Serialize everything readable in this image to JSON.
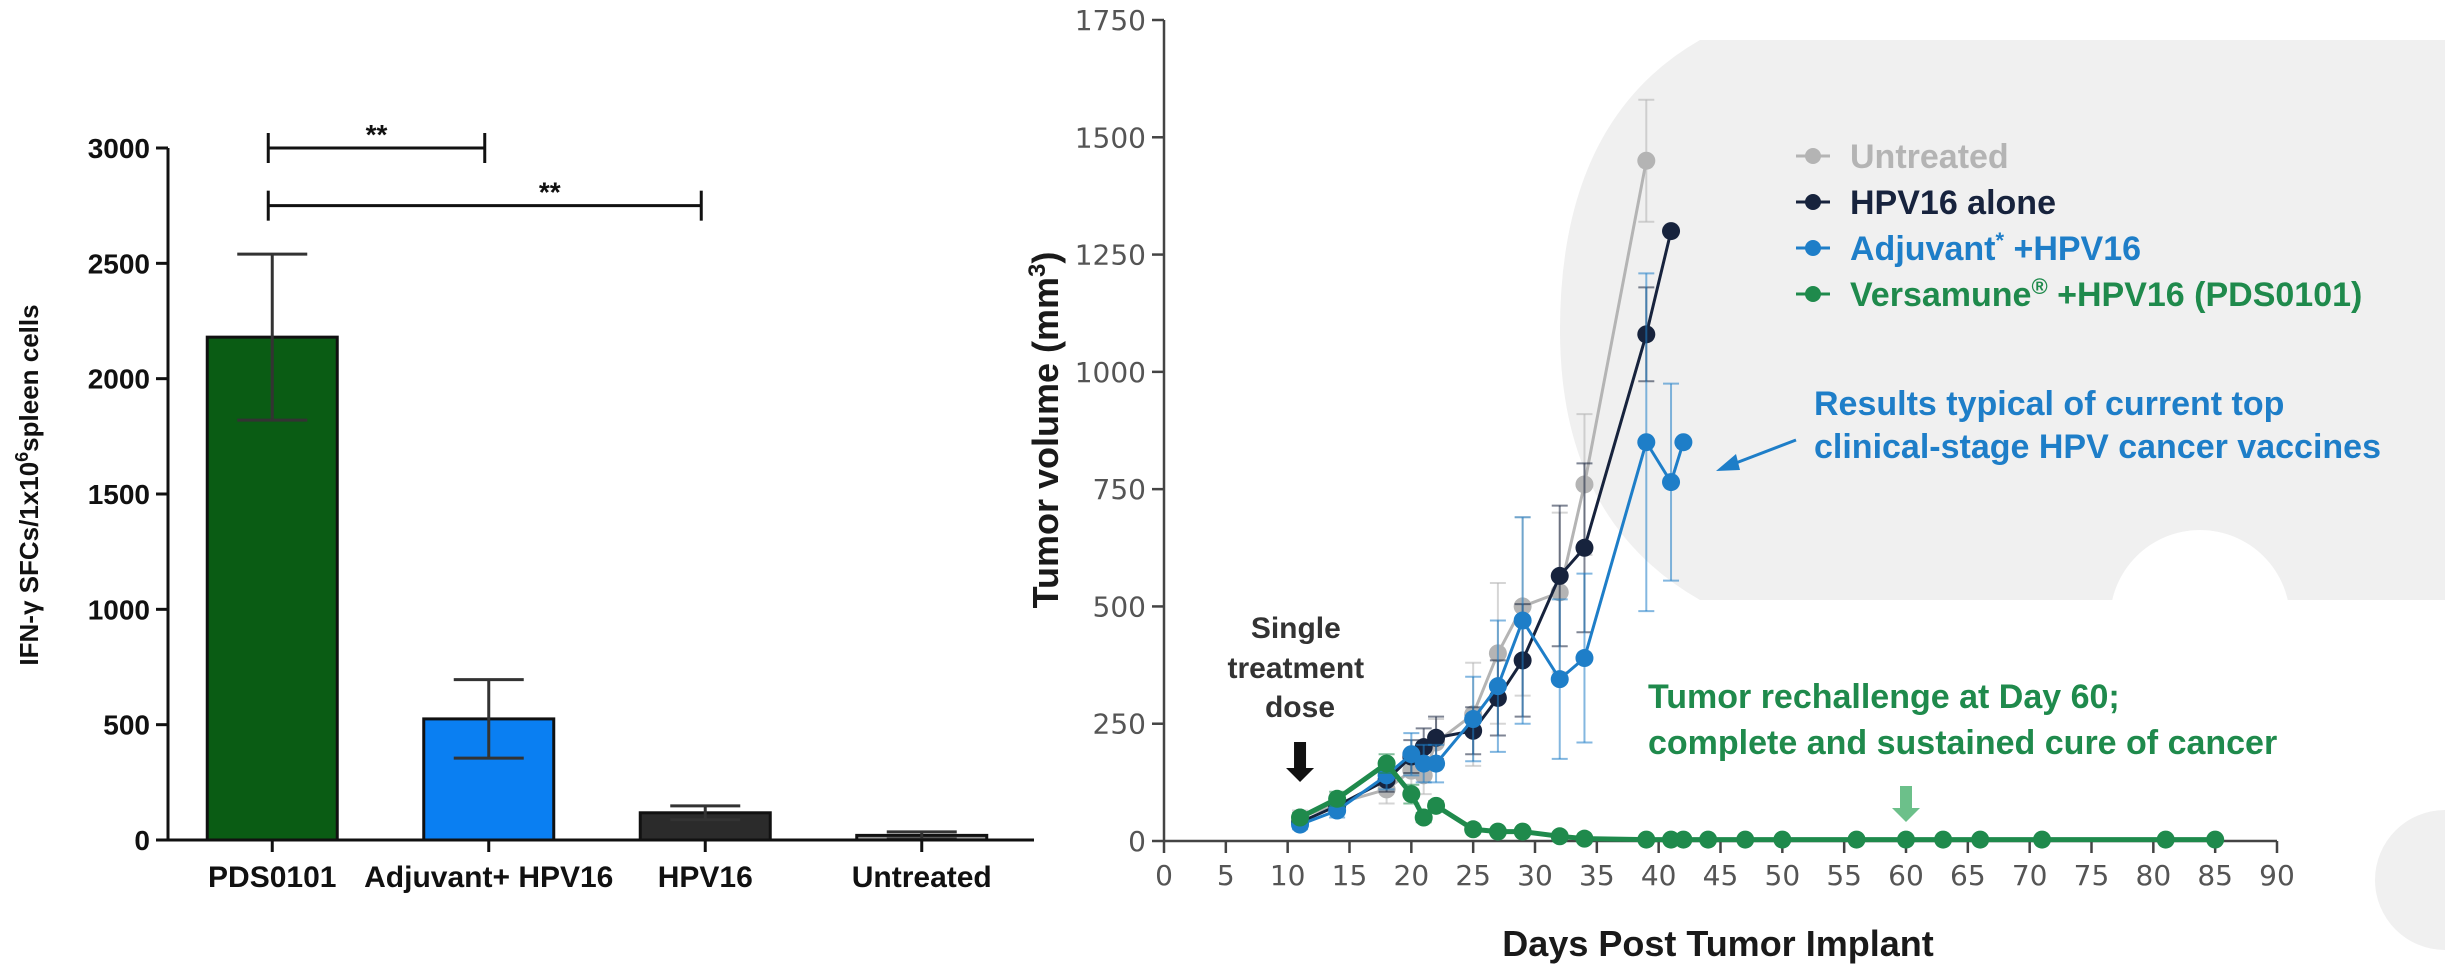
{
  "chart_data": [
    {
      "type": "bar",
      "title": "",
      "xlabel": "",
      "ylabel_prefix": "IFN-",
      "ylabel_gamma": "γ",
      "ylabel_mid": " SFCs/1x10",
      "ylabel_sup": "6",
      "ylabel_suffix": "spleen cells",
      "ylim": [
        0,
        3000
      ],
      "yticks": [
        0,
        500,
        1000,
        1500,
        2000,
        2500,
        3000
      ],
      "categories": [
        "PDS0101",
        "Adjuvant+ HPV16",
        "HPV16",
        "Untreated"
      ],
      "values": [
        2180,
        525,
        118,
        20
      ],
      "error": [
        360,
        170,
        30,
        15
      ],
      "colors": [
        "#0a5c14",
        "#0a7ff2",
        "#2b2b2b",
        "#9a9a9a"
      ],
      "significance": [
        {
          "from": 0,
          "to": 1,
          "y": 3000,
          "label": "**"
        },
        {
          "from": 0,
          "to": 2,
          "y": 2750,
          "label": "**"
        }
      ]
    },
    {
      "type": "line",
      "xlabel": "Days Post Tumor Implant",
      "ylabel": "Tumor volume (mm",
      "ylabel_sup": "3",
      "ylabel_close": ")",
      "xlim": [
        0,
        90
      ],
      "ylim": [
        0,
        1750
      ],
      "xticks": [
        0,
        5,
        10,
        15,
        20,
        25,
        30,
        35,
        40,
        45,
        50,
        55,
        60,
        65,
        70,
        75,
        80,
        85,
        90
      ],
      "yticks": [
        0,
        250,
        500,
        750,
        1000,
        1250,
        1500,
        1750
      ],
      "legend": [
        {
          "label": "Untreated",
          "sup": "",
          "suffix": "",
          "color": "#b4b4b4"
        },
        {
          "label": "HPV16 alone",
          "sup": "",
          "suffix": "",
          "color": "#17233d"
        },
        {
          "label": "Adjuvant",
          "sup": "*",
          "suffix": " +HPV16",
          "color": "#1e7ec8"
        },
        {
          "label": "Versamune",
          "sup": "®",
          "suffix": " +HPV16 (PDS0101)",
          "color": "#1f8a4c"
        }
      ],
      "series": [
        {
          "name": "Untreated",
          "color": "#b4b4b4",
          "x": [
            11,
            14,
            18,
            20,
            21,
            22,
            25,
            27,
            29,
            32,
            34,
            39
          ],
          "y": [
            50,
            80,
            110,
            150,
            140,
            210,
            270,
            400,
            500,
            530,
            760,
            1450
          ],
          "err": [
            15,
            20,
            30,
            40,
            40,
            50,
            110,
            150,
            190,
            170,
            150,
            130
          ]
        },
        {
          "name": "HPV16 alone",
          "color": "#17233d",
          "x": [
            11,
            14,
            18,
            20,
            21,
            22,
            25,
            27,
            29,
            32,
            34,
            39,
            41
          ],
          "y": [
            40,
            75,
            130,
            180,
            200,
            220,
            235,
            305,
            385,
            565,
            625,
            1080,
            1300
          ],
          "err": [
            10,
            15,
            25,
            35,
            40,
            45,
            50,
            80,
            120,
            150,
            180,
            100,
            0
          ]
        },
        {
          "name": "Adjuvant* +HPV16",
          "color": "#1e7ec8",
          "x": [
            11,
            14,
            18,
            20,
            21,
            22,
            25,
            27,
            29,
            32,
            34,
            39,
            41,
            42
          ],
          "y": [
            35,
            65,
            140,
            185,
            165,
            165,
            260,
            330,
            470,
            345,
            390,
            850,
            765,
            850
          ],
          "err": [
            10,
            15,
            30,
            45,
            40,
            40,
            90,
            140,
            220,
            170,
            180,
            360,
            210,
            0
          ]
        },
        {
          "name": "Versamune® +HPV16 (PDS0101)",
          "color": "#1f8a4c",
          "x": [
            11,
            14,
            18,
            20,
            21,
            22,
            25,
            27,
            29,
            32,
            34,
            39,
            41,
            42,
            44,
            47,
            50,
            56,
            60,
            63,
            66,
            71,
            81,
            85
          ],
          "y": [
            50,
            90,
            165,
            100,
            50,
            75,
            25,
            20,
            20,
            10,
            5,
            3,
            3,
            3,
            3,
            3,
            3,
            3,
            3,
            3,
            3,
            3,
            3,
            3
          ],
          "err": [
            10,
            15,
            20,
            20,
            10,
            10,
            5,
            5,
            5,
            3,
            2,
            0,
            0,
            0,
            0,
            0,
            0,
            0,
            0,
            0,
            0,
            0,
            0,
            0
          ]
        }
      ],
      "annotations": {
        "single_dose": [
          "Single",
          "treatment",
          "dose"
        ],
        "single_dose_day": 11,
        "typical_line1": "Results typical of current top",
        "typical_line2": "clinical-stage HPV cancer vaccines",
        "rechallenge_line1": "Tumor rechallenge at Day 60;",
        "rechallenge_line2": "complete and sustained cure of cancer",
        "rechallenge_day": 60
      }
    }
  ]
}
